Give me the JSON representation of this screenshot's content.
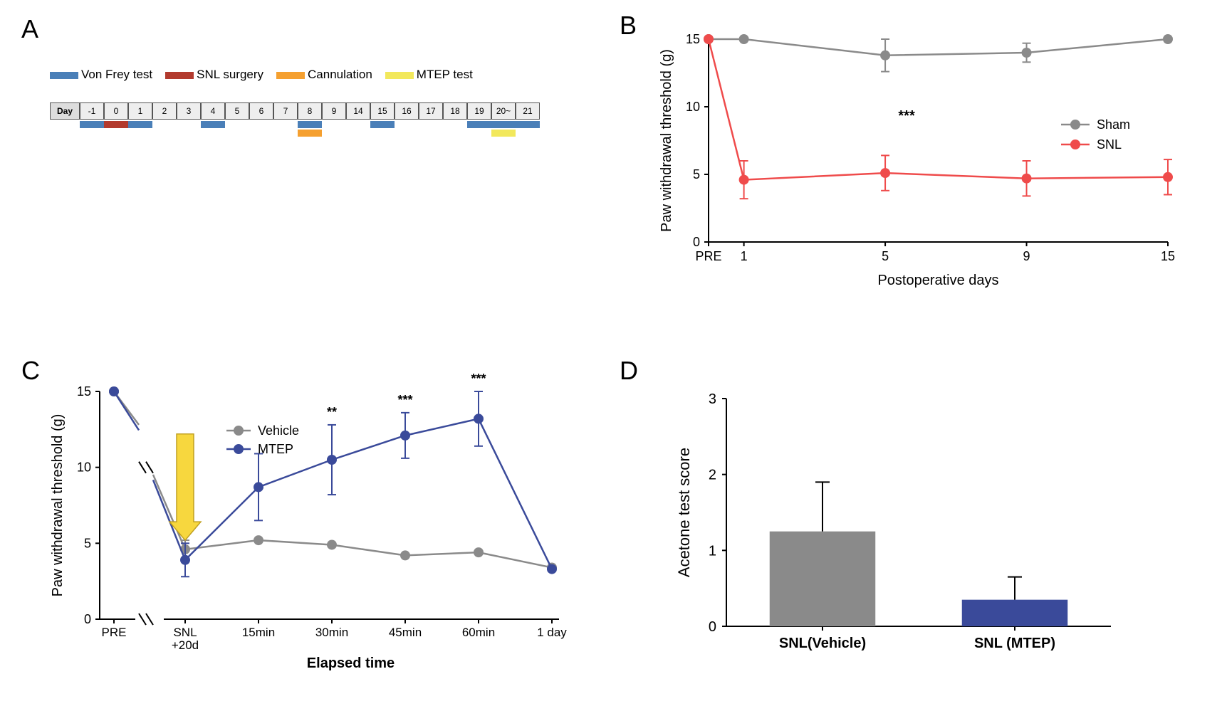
{
  "panelA": {
    "label": "A",
    "legend": [
      {
        "label": "Von Frey test",
        "color": "#4a7fb8"
      },
      {
        "label": "SNL surgery",
        "color": "#b23a2e"
      },
      {
        "label": "Cannulation",
        "color": "#f5a030"
      },
      {
        "label": "MTEP test",
        "color": "#f2e85c"
      }
    ],
    "day_label": "Day",
    "days_left": [
      "-1",
      "0",
      "1",
      "2",
      "3",
      "4",
      "5",
      "6",
      "7",
      "8",
      "9"
    ],
    "days_right": [
      "14",
      "15",
      "16",
      "17",
      "18",
      "19",
      "20~",
      "21"
    ],
    "bars": [
      {
        "type": "vonfrey",
        "day": "-1"
      },
      {
        "type": "snl",
        "day": "0"
      },
      {
        "type": "vonfrey",
        "day": "1"
      },
      {
        "type": "vonfrey",
        "day": "4"
      },
      {
        "type": "vonfrey",
        "day": "8"
      },
      {
        "type": "cannulation",
        "day": "8"
      },
      {
        "type": "vonfrey",
        "day": "15"
      },
      {
        "type": "vonfrey",
        "day": "19"
      },
      {
        "type": "vonfrey",
        "day": "20~"
      },
      {
        "type": "mtep",
        "day": "20~"
      },
      {
        "type": "vonfrey",
        "day": "21"
      }
    ]
  },
  "panelB": {
    "label": "B",
    "type": "line",
    "ylabel": "Paw withdrawal threshold (g)",
    "xlabel": "Postoperative days",
    "ylim": [
      0,
      15
    ],
    "ytick_step": 5,
    "x_categories": [
      "PRE",
      "1",
      "5",
      "9",
      "15"
    ],
    "x_positions": [
      0,
      0.8,
      4,
      7.2,
      10.4
    ],
    "series": [
      {
        "name": "Sham",
        "color": "#8a8a8a",
        "values": [
          15,
          15,
          13.8,
          14,
          15
        ],
        "err": [
          0,
          0,
          1.2,
          0.7,
          0
        ]
      },
      {
        "name": "SNL",
        "color": "#ef4b4b",
        "values": [
          15,
          4.6,
          5.1,
          4.7,
          4.8
        ],
        "err": [
          0,
          1.4,
          1.3,
          1.3,
          1.3
        ]
      }
    ],
    "sig": {
      "x_index": 2,
      "label": "***"
    },
    "line_width": 2.5,
    "marker_r": 7,
    "axis_color": "#000000",
    "axis_width": 2
  },
  "panelC": {
    "label": "C",
    "type": "line",
    "ylabel": "Paw withdrawal threshold (g)",
    "xlabel": "Elapsed time",
    "ylim": [
      0,
      15
    ],
    "ytick_step": 5,
    "x_categories": [
      "PRE",
      "SNL\n+20d",
      "15min",
      "30min",
      "45min",
      "60min",
      "1 day"
    ],
    "series": [
      {
        "name": "Vehicle",
        "color": "#8a8a8a",
        "values": [
          15,
          4.6,
          5.2,
          4.9,
          4.2,
          4.4,
          3.4
        ],
        "err": [
          0,
          0.6,
          0,
          0,
          0,
          0,
          0
        ]
      },
      {
        "name": "MTEP",
        "color": "#3a4a9a",
        "values": [
          15,
          3.9,
          8.7,
          10.5,
          12.1,
          13.2,
          3.3
        ],
        "err": [
          0,
          1.1,
          2.2,
          2.3,
          1.5,
          1.8,
          0
        ]
      }
    ],
    "sig": [
      {
        "idx": 3,
        "label": "**"
      },
      {
        "idx": 4,
        "label": "***"
      },
      {
        "idx": 5,
        "label": "***"
      }
    ],
    "arrow_color": "#f7d73e",
    "arrow_stroke": "#c0a020",
    "line_width": 2.5,
    "marker_r": 7,
    "axis_color": "#000000",
    "axis_width": 2,
    "break_after_index": 0
  },
  "panelD": {
    "label": "D",
    "type": "bar",
    "ylabel": "Acetone test score",
    "ylim": [
      0,
      3
    ],
    "ytick_step": 1,
    "categories": [
      "SNL(Vehicle)",
      "SNL (MTEP)"
    ],
    "values": [
      1.25,
      0.35
    ],
    "errors": [
      0.65,
      0.3
    ],
    "bar_colors": [
      "#8a8a8a",
      "#3a4a9a"
    ],
    "bar_width": 0.55,
    "axis_color": "#000000",
    "axis_width": 2
  }
}
